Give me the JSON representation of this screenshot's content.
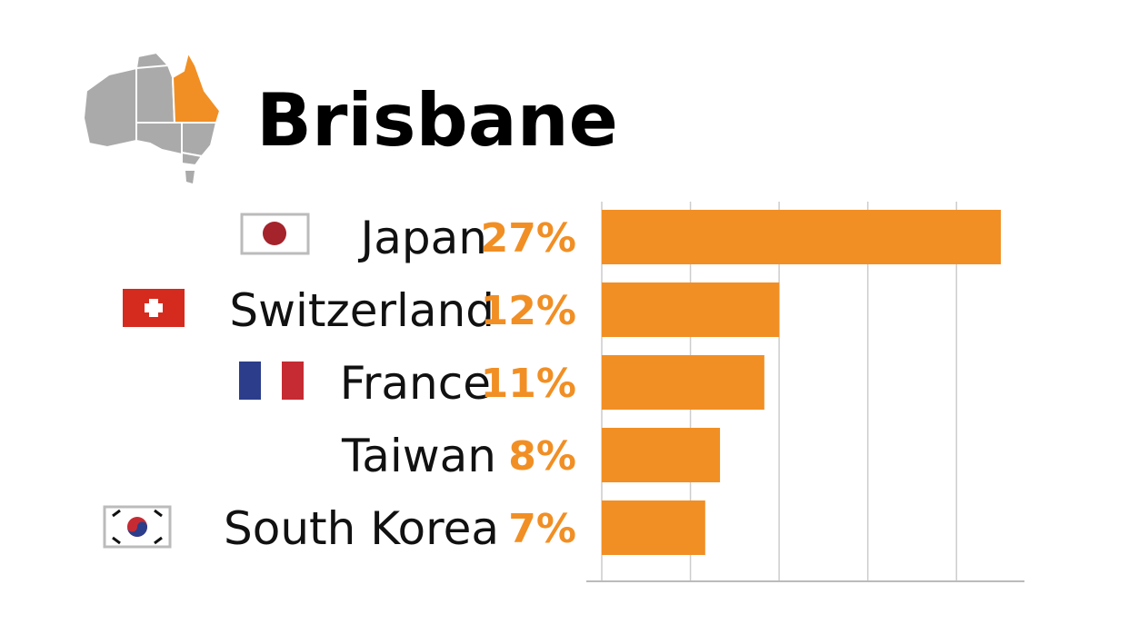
{
  "chart_data": {
    "type": "bar",
    "orientation": "horizontal",
    "title": "Brisbane",
    "categories": [
      "Japan",
      "Switzerland",
      "France",
      "Taiwan",
      "South Korea"
    ],
    "values": [
      27,
      12,
      11,
      8,
      7
    ],
    "value_labels": [
      "27%",
      "12%",
      "11%",
      "8%",
      "7%"
    ],
    "color": "#f18f24",
    "xlim": [
      0,
      28.6
    ],
    "xticks": [
      0,
      6,
      12,
      18,
      24
    ],
    "grid": true
  }
}
